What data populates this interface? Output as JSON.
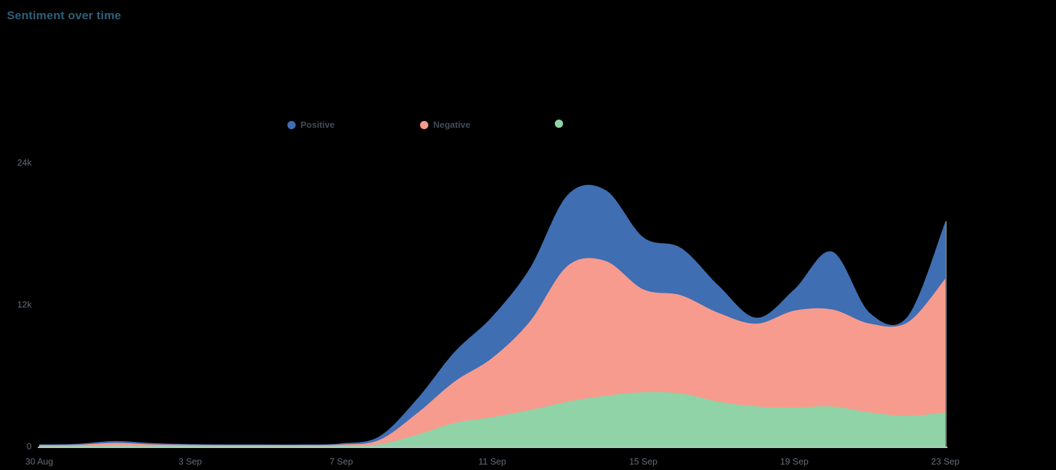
{
  "header": {
    "title": "Sentiment over time"
  },
  "colors": {
    "title": "#2f5f78",
    "legend_text": "#3f4c58",
    "axis_text": "#626d77",
    "baseline": "#d6d9dd",
    "positive": "#3f6eb2",
    "negative": "#f79b8e",
    "neutral_green": "#8fd3a7"
  },
  "legend": [
    {
      "label": "Positive",
      "color": "#3f6eb2"
    },
    {
      "label": "Negative",
      "color": "#f79b8e"
    },
    {
      "label": "",
      "color": "#8fd3a7"
    }
  ],
  "chart_data": {
    "type": "area",
    "stacked": true,
    "stack_order": "bottom-to-top",
    "title": "Sentiment over time",
    "xlabel": "",
    "ylabel": "",
    "grid": false,
    "legend_position": "top-center",
    "ylim": [
      0,
      24000
    ],
    "x": [
      "30 Aug",
      "31 Aug",
      "1 Sep",
      "2 Sep",
      "3 Sep",
      "4 Sep",
      "5 Sep",
      "6 Sep",
      "7 Sep",
      "8 Sep",
      "9 Sep",
      "10 Sep",
      "11 Sep",
      "12 Sep",
      "13 Sep",
      "14 Sep",
      "15 Sep",
      "16 Sep",
      "17 Sep",
      "18 Sep",
      "19 Sep",
      "20 Sep",
      "21 Sep",
      "22 Sep",
      "23 Sep"
    ],
    "x_ticks": [
      "30 Aug",
      "3 Sep",
      "7 Sep",
      "11 Sep",
      "15 Sep",
      "19 Sep",
      "23 Sep"
    ],
    "y_ticks": [
      {
        "label": "0",
        "value": 0
      },
      {
        "label": "12k",
        "value": 12000
      },
      {
        "label": "24k",
        "value": 24000
      }
    ],
    "series": [
      {
        "name": "",
        "color": "#8fd3a7",
        "values": [
          50,
          60,
          120,
          80,
          60,
          50,
          50,
          50,
          60,
          200,
          1000,
          2000,
          2500,
          3100,
          3800,
          4300,
          4600,
          4500,
          3800,
          3400,
          3300,
          3400,
          2900,
          2600,
          2900
        ]
      },
      {
        "name": "Negative",
        "color": "#f79b8e",
        "values": [
          80,
          100,
          200,
          120,
          90,
          80,
          80,
          80,
          120,
          350,
          1800,
          3500,
          5000,
          7500,
          11500,
          11400,
          8700,
          8300,
          7500,
          7000,
          8200,
          8200,
          7500,
          7900,
          11300
        ]
      },
      {
        "name": "Positive",
        "color": "#3f6eb2",
        "values": [
          60,
          80,
          150,
          100,
          70,
          60,
          60,
          60,
          100,
          300,
          1200,
          2500,
          3500,
          4500,
          6000,
          6000,
          4400,
          4000,
          2300,
          500,
          1800,
          4900,
          900,
          500,
          4800
        ]
      }
    ]
  }
}
